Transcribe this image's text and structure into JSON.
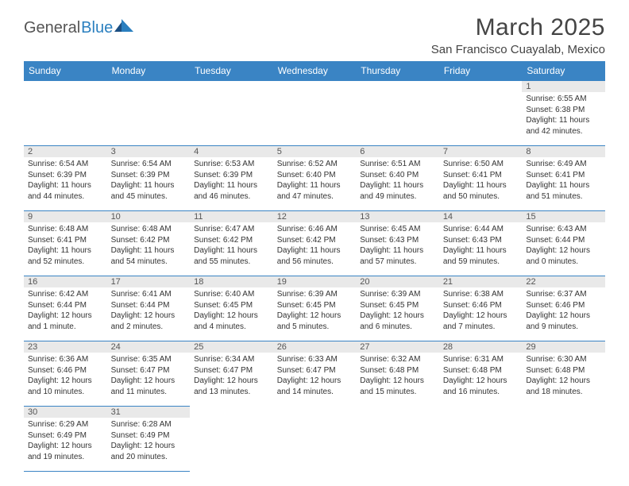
{
  "logo": {
    "part1": "General",
    "part2": "Blue"
  },
  "title": "March 2025",
  "location": "San Francisco Cuayalab, Mexico",
  "colors": {
    "header_bg": "#3a84c4",
    "header_text": "#ffffff",
    "daynum_bg": "#e9e9e9",
    "border": "#3a84c4",
    "title_color": "#444444",
    "body_text": "#333333",
    "logo_blue": "#2a7fbf",
    "logo_gray": "#555555",
    "background": "#ffffff"
  },
  "daysOfWeek": [
    "Sunday",
    "Monday",
    "Tuesday",
    "Wednesday",
    "Thursday",
    "Friday",
    "Saturday"
  ],
  "weeks": [
    [
      null,
      null,
      null,
      null,
      null,
      null,
      {
        "d": "1",
        "sr": "6:55 AM",
        "ss": "6:38 PM",
        "dl": "11 hours and 42 minutes."
      }
    ],
    [
      {
        "d": "2",
        "sr": "6:54 AM",
        "ss": "6:39 PM",
        "dl": "11 hours and 44 minutes."
      },
      {
        "d": "3",
        "sr": "6:54 AM",
        "ss": "6:39 PM",
        "dl": "11 hours and 45 minutes."
      },
      {
        "d": "4",
        "sr": "6:53 AM",
        "ss": "6:39 PM",
        "dl": "11 hours and 46 minutes."
      },
      {
        "d": "5",
        "sr": "6:52 AM",
        "ss": "6:40 PM",
        "dl": "11 hours and 47 minutes."
      },
      {
        "d": "6",
        "sr": "6:51 AM",
        "ss": "6:40 PM",
        "dl": "11 hours and 49 minutes."
      },
      {
        "d": "7",
        "sr": "6:50 AM",
        "ss": "6:41 PM",
        "dl": "11 hours and 50 minutes."
      },
      {
        "d": "8",
        "sr": "6:49 AM",
        "ss": "6:41 PM",
        "dl": "11 hours and 51 minutes."
      }
    ],
    [
      {
        "d": "9",
        "sr": "6:48 AM",
        "ss": "6:41 PM",
        "dl": "11 hours and 52 minutes."
      },
      {
        "d": "10",
        "sr": "6:48 AM",
        "ss": "6:42 PM",
        "dl": "11 hours and 54 minutes."
      },
      {
        "d": "11",
        "sr": "6:47 AM",
        "ss": "6:42 PM",
        "dl": "11 hours and 55 minutes."
      },
      {
        "d": "12",
        "sr": "6:46 AM",
        "ss": "6:42 PM",
        "dl": "11 hours and 56 minutes."
      },
      {
        "d": "13",
        "sr": "6:45 AM",
        "ss": "6:43 PM",
        "dl": "11 hours and 57 minutes."
      },
      {
        "d": "14",
        "sr": "6:44 AM",
        "ss": "6:43 PM",
        "dl": "11 hours and 59 minutes."
      },
      {
        "d": "15",
        "sr": "6:43 AM",
        "ss": "6:44 PM",
        "dl": "12 hours and 0 minutes."
      }
    ],
    [
      {
        "d": "16",
        "sr": "6:42 AM",
        "ss": "6:44 PM",
        "dl": "12 hours and 1 minute."
      },
      {
        "d": "17",
        "sr": "6:41 AM",
        "ss": "6:44 PM",
        "dl": "12 hours and 2 minutes."
      },
      {
        "d": "18",
        "sr": "6:40 AM",
        "ss": "6:45 PM",
        "dl": "12 hours and 4 minutes."
      },
      {
        "d": "19",
        "sr": "6:39 AM",
        "ss": "6:45 PM",
        "dl": "12 hours and 5 minutes."
      },
      {
        "d": "20",
        "sr": "6:39 AM",
        "ss": "6:45 PM",
        "dl": "12 hours and 6 minutes."
      },
      {
        "d": "21",
        "sr": "6:38 AM",
        "ss": "6:46 PM",
        "dl": "12 hours and 7 minutes."
      },
      {
        "d": "22",
        "sr": "6:37 AM",
        "ss": "6:46 PM",
        "dl": "12 hours and 9 minutes."
      }
    ],
    [
      {
        "d": "23",
        "sr": "6:36 AM",
        "ss": "6:46 PM",
        "dl": "12 hours and 10 minutes."
      },
      {
        "d": "24",
        "sr": "6:35 AM",
        "ss": "6:47 PM",
        "dl": "12 hours and 11 minutes."
      },
      {
        "d": "25",
        "sr": "6:34 AM",
        "ss": "6:47 PM",
        "dl": "12 hours and 13 minutes."
      },
      {
        "d": "26",
        "sr": "6:33 AM",
        "ss": "6:47 PM",
        "dl": "12 hours and 14 minutes."
      },
      {
        "d": "27",
        "sr": "6:32 AM",
        "ss": "6:48 PM",
        "dl": "12 hours and 15 minutes."
      },
      {
        "d": "28",
        "sr": "6:31 AM",
        "ss": "6:48 PM",
        "dl": "12 hours and 16 minutes."
      },
      {
        "d": "29",
        "sr": "6:30 AM",
        "ss": "6:48 PM",
        "dl": "12 hours and 18 minutes."
      }
    ],
    [
      {
        "d": "30",
        "sr": "6:29 AM",
        "ss": "6:49 PM",
        "dl": "12 hours and 19 minutes."
      },
      {
        "d": "31",
        "sr": "6:28 AM",
        "ss": "6:49 PM",
        "dl": "12 hours and 20 minutes."
      },
      null,
      null,
      null,
      null,
      null
    ]
  ],
  "labels": {
    "sunrise": "Sunrise:",
    "sunset": "Sunset:",
    "daylight": "Daylight:"
  }
}
